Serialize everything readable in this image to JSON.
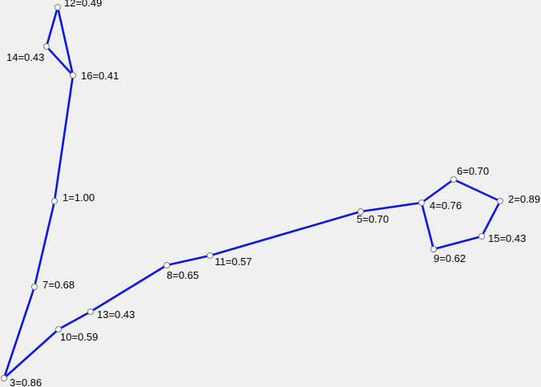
{
  "colors": {
    "background": "#f0f0f0",
    "edge": "#0a14e6",
    "node_stroke": "#7a7a7a"
  },
  "nodes": [
    {
      "id": "12",
      "label": "12=0.49"
    },
    {
      "id": "14",
      "label": "14=0.43"
    },
    {
      "id": "16",
      "label": "16=0.41"
    },
    {
      "id": "1",
      "label": "1=1.00"
    },
    {
      "id": "7",
      "label": "7=0.68"
    },
    {
      "id": "3",
      "label": "3=0.86"
    },
    {
      "id": "10",
      "label": "10=0.59"
    },
    {
      "id": "13",
      "label": "13=0.43"
    },
    {
      "id": "8",
      "label": "8=0.65"
    },
    {
      "id": "11",
      "label": "11=0.57"
    },
    {
      "id": "5",
      "label": "5=0.70"
    },
    {
      "id": "4",
      "label": "4=0.76"
    },
    {
      "id": "6",
      "label": "6=0.70"
    },
    {
      "id": "2",
      "label": "2=0.89"
    },
    {
      "id": "15",
      "label": "15=0.43"
    },
    {
      "id": "9",
      "label": "9=0.62"
    }
  ],
  "edges": [
    [
      "12",
      "14"
    ],
    [
      "14",
      "16"
    ],
    [
      "16",
      "12"
    ],
    [
      "16",
      "1"
    ],
    [
      "1",
      "7"
    ],
    [
      "7",
      "3"
    ],
    [
      "3",
      "10"
    ],
    [
      "10",
      "13"
    ],
    [
      "13",
      "8"
    ],
    [
      "8",
      "11"
    ],
    [
      "11",
      "5"
    ],
    [
      "5",
      "4"
    ],
    [
      "4",
      "6"
    ],
    [
      "6",
      "2"
    ],
    [
      "2",
      "15"
    ],
    [
      "15",
      "9"
    ],
    [
      "9",
      "4"
    ]
  ]
}
